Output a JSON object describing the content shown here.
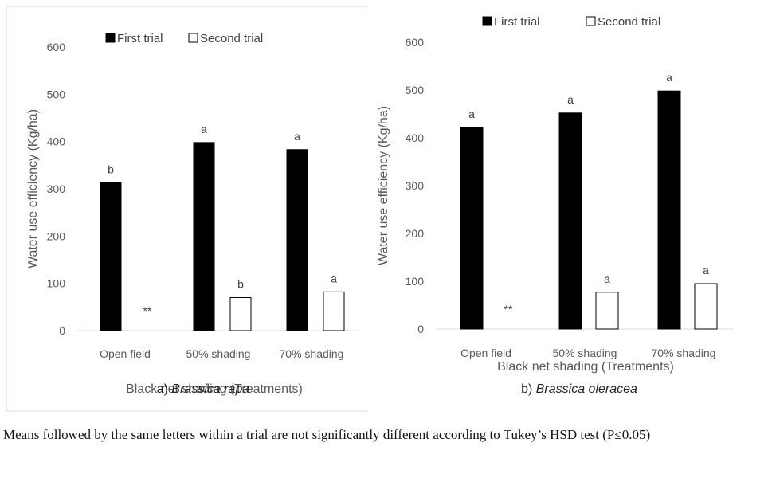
{
  "chart_data": [
    {
      "type": "bar",
      "title": "a) Brassica rapa",
      "title_prefix": "a) ",
      "title_species": "Brassica rapa",
      "xlabel": "Black net shading (Treatments)",
      "ylabel": "Water use efficiency (Kg/ha)",
      "ylim": [
        0,
        600
      ],
      "yticks": [
        "0",
        "100",
        "200",
        "300",
        "400",
        "500",
        "600"
      ],
      "categories": [
        "Open field",
        "50% shading",
        "70% shading"
      ],
      "legend_position": "top",
      "grid": false,
      "series": [
        {
          "name": "First trial",
          "values": [
            313,
            398,
            383
          ],
          "labels": [
            "b",
            "a",
            "a"
          ],
          "color": "#000000"
        },
        {
          "name": "Second trial",
          "values": [
            0,
            70,
            82
          ],
          "labels": [
            "**",
            "b",
            "a"
          ],
          "color": "#ffffff"
        }
      ]
    },
    {
      "type": "bar",
      "title": "b) Brassica oleracea",
      "title_prefix": "b) ",
      "title_species": "Brassica oleracea",
      "xlabel": "Black net shading (Treatments)",
      "ylabel": "Water use efficiency (Kg/ha)",
      "ylim": [
        0,
        600
      ],
      "yticks": [
        "0",
        "100",
        "200",
        "300",
        "400",
        "500",
        "600"
      ],
      "categories": [
        "Open field",
        "50% shading",
        "70% shading"
      ],
      "legend_position": "top",
      "grid": false,
      "series": [
        {
          "name": "First trial",
          "values": [
            422,
            452,
            498
          ],
          "labels": [
            "a",
            "a",
            "a"
          ],
          "color": "#000000"
        },
        {
          "name": "Second trial",
          "values": [
            0,
            77,
            95
          ],
          "labels": [
            "**",
            "a",
            "a"
          ],
          "color": "#ffffff"
        }
      ]
    }
  ],
  "footnote": "Means followed by the same letters within a trial are not significantly different according to Tukey’s HSD test (P≤0.05)"
}
